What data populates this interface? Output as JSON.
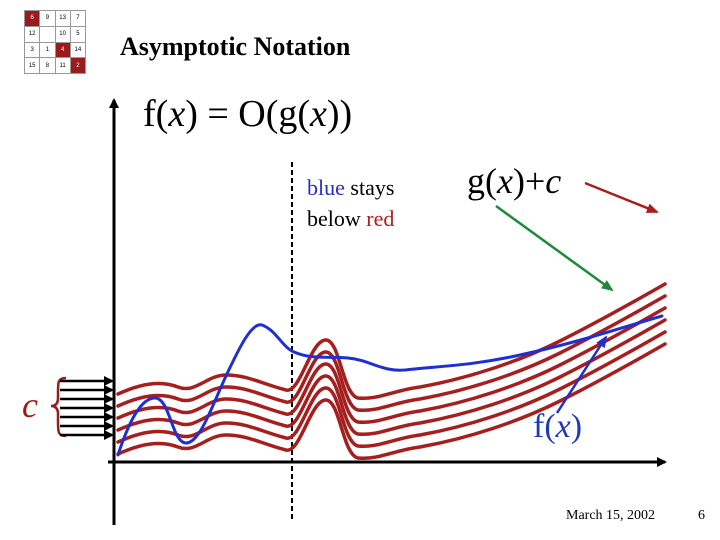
{
  "logo": {
    "cells": [
      {
        "text": "6",
        "dark": true
      },
      {
        "text": "9",
        "dark": false
      },
      {
        "text": "13",
        "dark": false
      },
      {
        "text": "7",
        "dark": false
      },
      {
        "text": "12",
        "dark": false
      },
      {
        "text": "",
        "dark": false
      },
      {
        "text": "10",
        "dark": false
      },
      {
        "text": "5",
        "dark": false
      },
      {
        "text": "3",
        "dark": false
      },
      {
        "text": "1",
        "dark": false
      },
      {
        "text": "4",
        "dark": true
      },
      {
        "text": "14",
        "dark": false
      },
      {
        "text": "15",
        "dark": false
      },
      {
        "text": "8",
        "dark": false
      },
      {
        "text": "11",
        "dark": false
      },
      {
        "text": "2",
        "dark": true
      }
    ]
  },
  "slide": {
    "title": "Asymptotic Notation",
    "headline": {
      "f": "f(",
      "x1": "x",
      "mid": ") = O(g(",
      "x2": "x",
      "end": "))"
    },
    "note": {
      "blue_word": "blue",
      "stays": " stays",
      "below": "below ",
      "red_word": "red"
    },
    "g_label": {
      "g": "g(",
      "x": "x",
      "close": ")",
      "plus": "+",
      "c": "c"
    },
    "f_label": {
      "f": "f(",
      "x": "x",
      "close": ")"
    },
    "c_label": "c",
    "footer": {
      "date": "March 15, 2002",
      "page": "6"
    }
  },
  "colors": {
    "red_curve": "#a51f1f",
    "blue_curve": "#1f2fd0",
    "green_arrow": "#1f8a3a",
    "axis": "#000000"
  },
  "icons": {
    "brace": "left-curly-brace",
    "arrows": "right-arrow-icon"
  }
}
